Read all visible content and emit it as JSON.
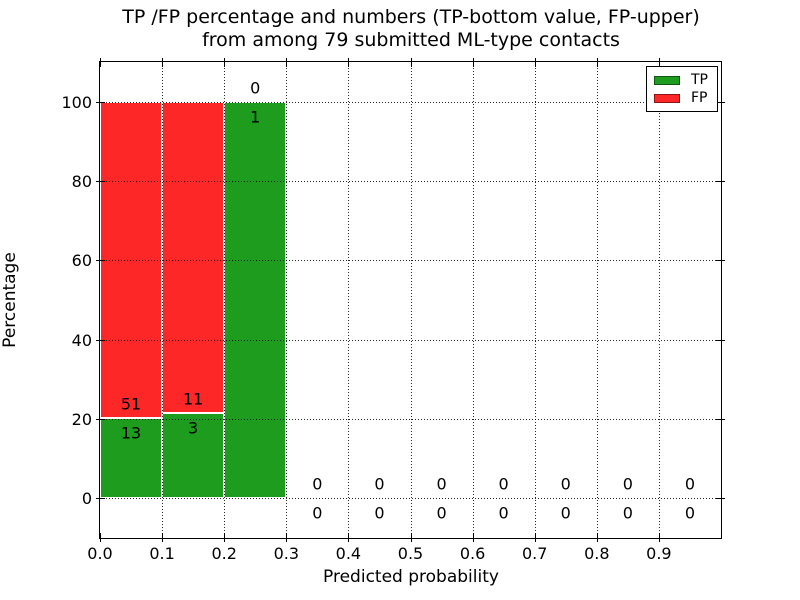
{
  "chart_data": {
    "type": "bar",
    "stacked": true,
    "title_lines": [
      "TP /FP percentage and numbers (TP-bottom value, FP-upper)",
      "from among 79 submitted ML-type contacts"
    ],
    "total_contacts": 79,
    "xlabel": "Predicted probability",
    "ylabel": "Percentage",
    "xlim": [
      0.0,
      1.0
    ],
    "ylim": [
      -10,
      110
    ],
    "xticks": {
      "values": [
        0.0,
        0.1,
        0.2,
        0.3,
        0.4,
        0.5,
        0.6,
        0.7,
        0.8,
        0.9
      ],
      "labels": [
        "0.0",
        "0.1",
        "0.2",
        "0.3",
        "0.4",
        "0.5",
        "0.6",
        "0.7",
        "0.8",
        "0.9"
      ]
    },
    "yticks": {
      "values": [
        0,
        20,
        40,
        60,
        80,
        100
      ],
      "labels": [
        "0",
        "20",
        "40",
        "60",
        "80",
        "100"
      ]
    },
    "grid": {
      "style": "dotted",
      "color": "#000000",
      "drawn_above_bars": true
    },
    "colors": {
      "tp": "#1e9c1e",
      "fp": "#fd2727",
      "bar_edge": "#ffffff"
    },
    "legend": {
      "position": "upper-right",
      "entries": [
        {
          "label": "TP",
          "series": "tp"
        },
        {
          "label": "FP",
          "series": "fp"
        }
      ]
    },
    "bins": [
      {
        "x_start": 0.0,
        "x_end": 0.1,
        "tp_count": 13,
        "fp_count": 51,
        "tp_pct": 20.31,
        "fp_pct": 79.69
      },
      {
        "x_start": 0.1,
        "x_end": 0.2,
        "tp_count": 3,
        "fp_count": 11,
        "tp_pct": 21.43,
        "fp_pct": 78.57
      },
      {
        "x_start": 0.2,
        "x_end": 0.3,
        "tp_count": 1,
        "fp_count": 0,
        "tp_pct": 100.0,
        "fp_pct": 0.0
      },
      {
        "x_start": 0.3,
        "x_end": 0.4,
        "tp_count": 0,
        "fp_count": 0,
        "tp_pct": 0.0,
        "fp_pct": 0.0
      },
      {
        "x_start": 0.4,
        "x_end": 0.5,
        "tp_count": 0,
        "fp_count": 0,
        "tp_pct": 0.0,
        "fp_pct": 0.0
      },
      {
        "x_start": 0.5,
        "x_end": 0.6,
        "tp_count": 0,
        "fp_count": 0,
        "tp_pct": 0.0,
        "fp_pct": 0.0
      },
      {
        "x_start": 0.6,
        "x_end": 0.7,
        "tp_count": 0,
        "fp_count": 0,
        "tp_pct": 0.0,
        "fp_pct": 0.0
      },
      {
        "x_start": 0.7,
        "x_end": 0.8,
        "tp_count": 0,
        "fp_count": 0,
        "tp_pct": 0.0,
        "fp_pct": 0.0
      },
      {
        "x_start": 0.8,
        "x_end": 0.9,
        "tp_count": 0,
        "fp_count": 0,
        "tp_pct": 0.0,
        "fp_pct": 0.0
      },
      {
        "x_start": 0.9,
        "x_end": 1.0,
        "tp_count": 0,
        "fp_count": 0,
        "tp_pct": 0.0,
        "fp_pct": 0.0
      }
    ]
  }
}
